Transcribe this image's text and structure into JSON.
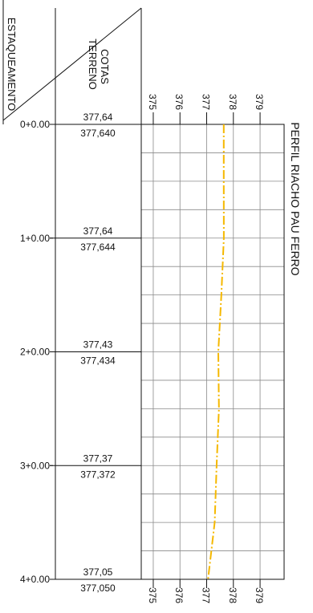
{
  "header": {
    "stationing_label": "ESTAQUEAMENTO",
    "ground_label_line1": "COTAS",
    "ground_label_line2": "TERRENO"
  },
  "title": "PERFIL RIACHO PAU FERRO",
  "elevation_axis": {
    "ticks": [
      "375",
      "376",
      "377",
      "378",
      "379"
    ]
  },
  "stations": [
    {
      "label": "0+0.00",
      "elev_upper": "377,64",
      "elev_lower": "377,640"
    },
    {
      "label": "1+0.00",
      "elev_upper": "377,64",
      "elev_lower": "377,644"
    },
    {
      "label": "2+0.00",
      "elev_upper": "377,43",
      "elev_lower": "377,434"
    },
    {
      "label": "3+0.00",
      "elev_upper": "377,37",
      "elev_lower": "377,372"
    },
    {
      "label": "4+0.00",
      "elev_upper": "377,05",
      "elev_lower": "377,050"
    }
  ],
  "chart_data": {
    "type": "line",
    "title": "PERFIL RIACHO PAU FERRO",
    "x_ticks": [
      375,
      376,
      377,
      378,
      379
    ],
    "xlim": [
      374.55,
      379.9
    ],
    "series": [
      {
        "color": "#f5b800",
        "station": [
          0,
          0.5,
          1,
          1.5,
          2,
          2.5,
          3,
          3.5,
          4
        ],
        "elevation": [
          377.64,
          377.64,
          377.644,
          377.55,
          377.434,
          377.46,
          377.372,
          377.3,
          377.05
        ]
      }
    ]
  },
  "colors": {
    "profile_line": "#f5b800",
    "grid": "#8a8a8a",
    "ink": "#111111"
  }
}
